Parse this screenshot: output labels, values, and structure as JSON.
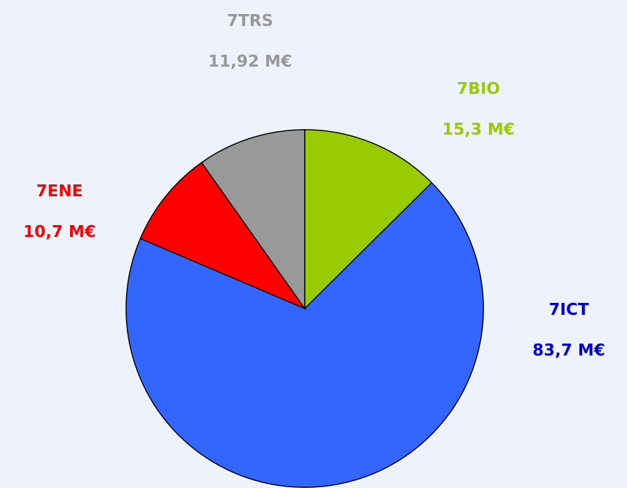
{
  "chart_data": {
    "type": "pie",
    "categories": [
      "7BIO",
      "7ICT",
      "7ENE",
      "7TRS"
    ],
    "values": [
      15.3,
      83.7,
      10.7,
      11.92
    ],
    "value_labels": [
      "15,3 M€",
      "83,7 M€",
      "10,7 M€",
      "11,92 M€"
    ],
    "colors": [
      "#99cc00",
      "#3366ff",
      "#ff0000",
      "#999999"
    ],
    "label_colors": [
      "#99cc00",
      "#0000cc",
      "#ff0000",
      "#999999"
    ]
  }
}
